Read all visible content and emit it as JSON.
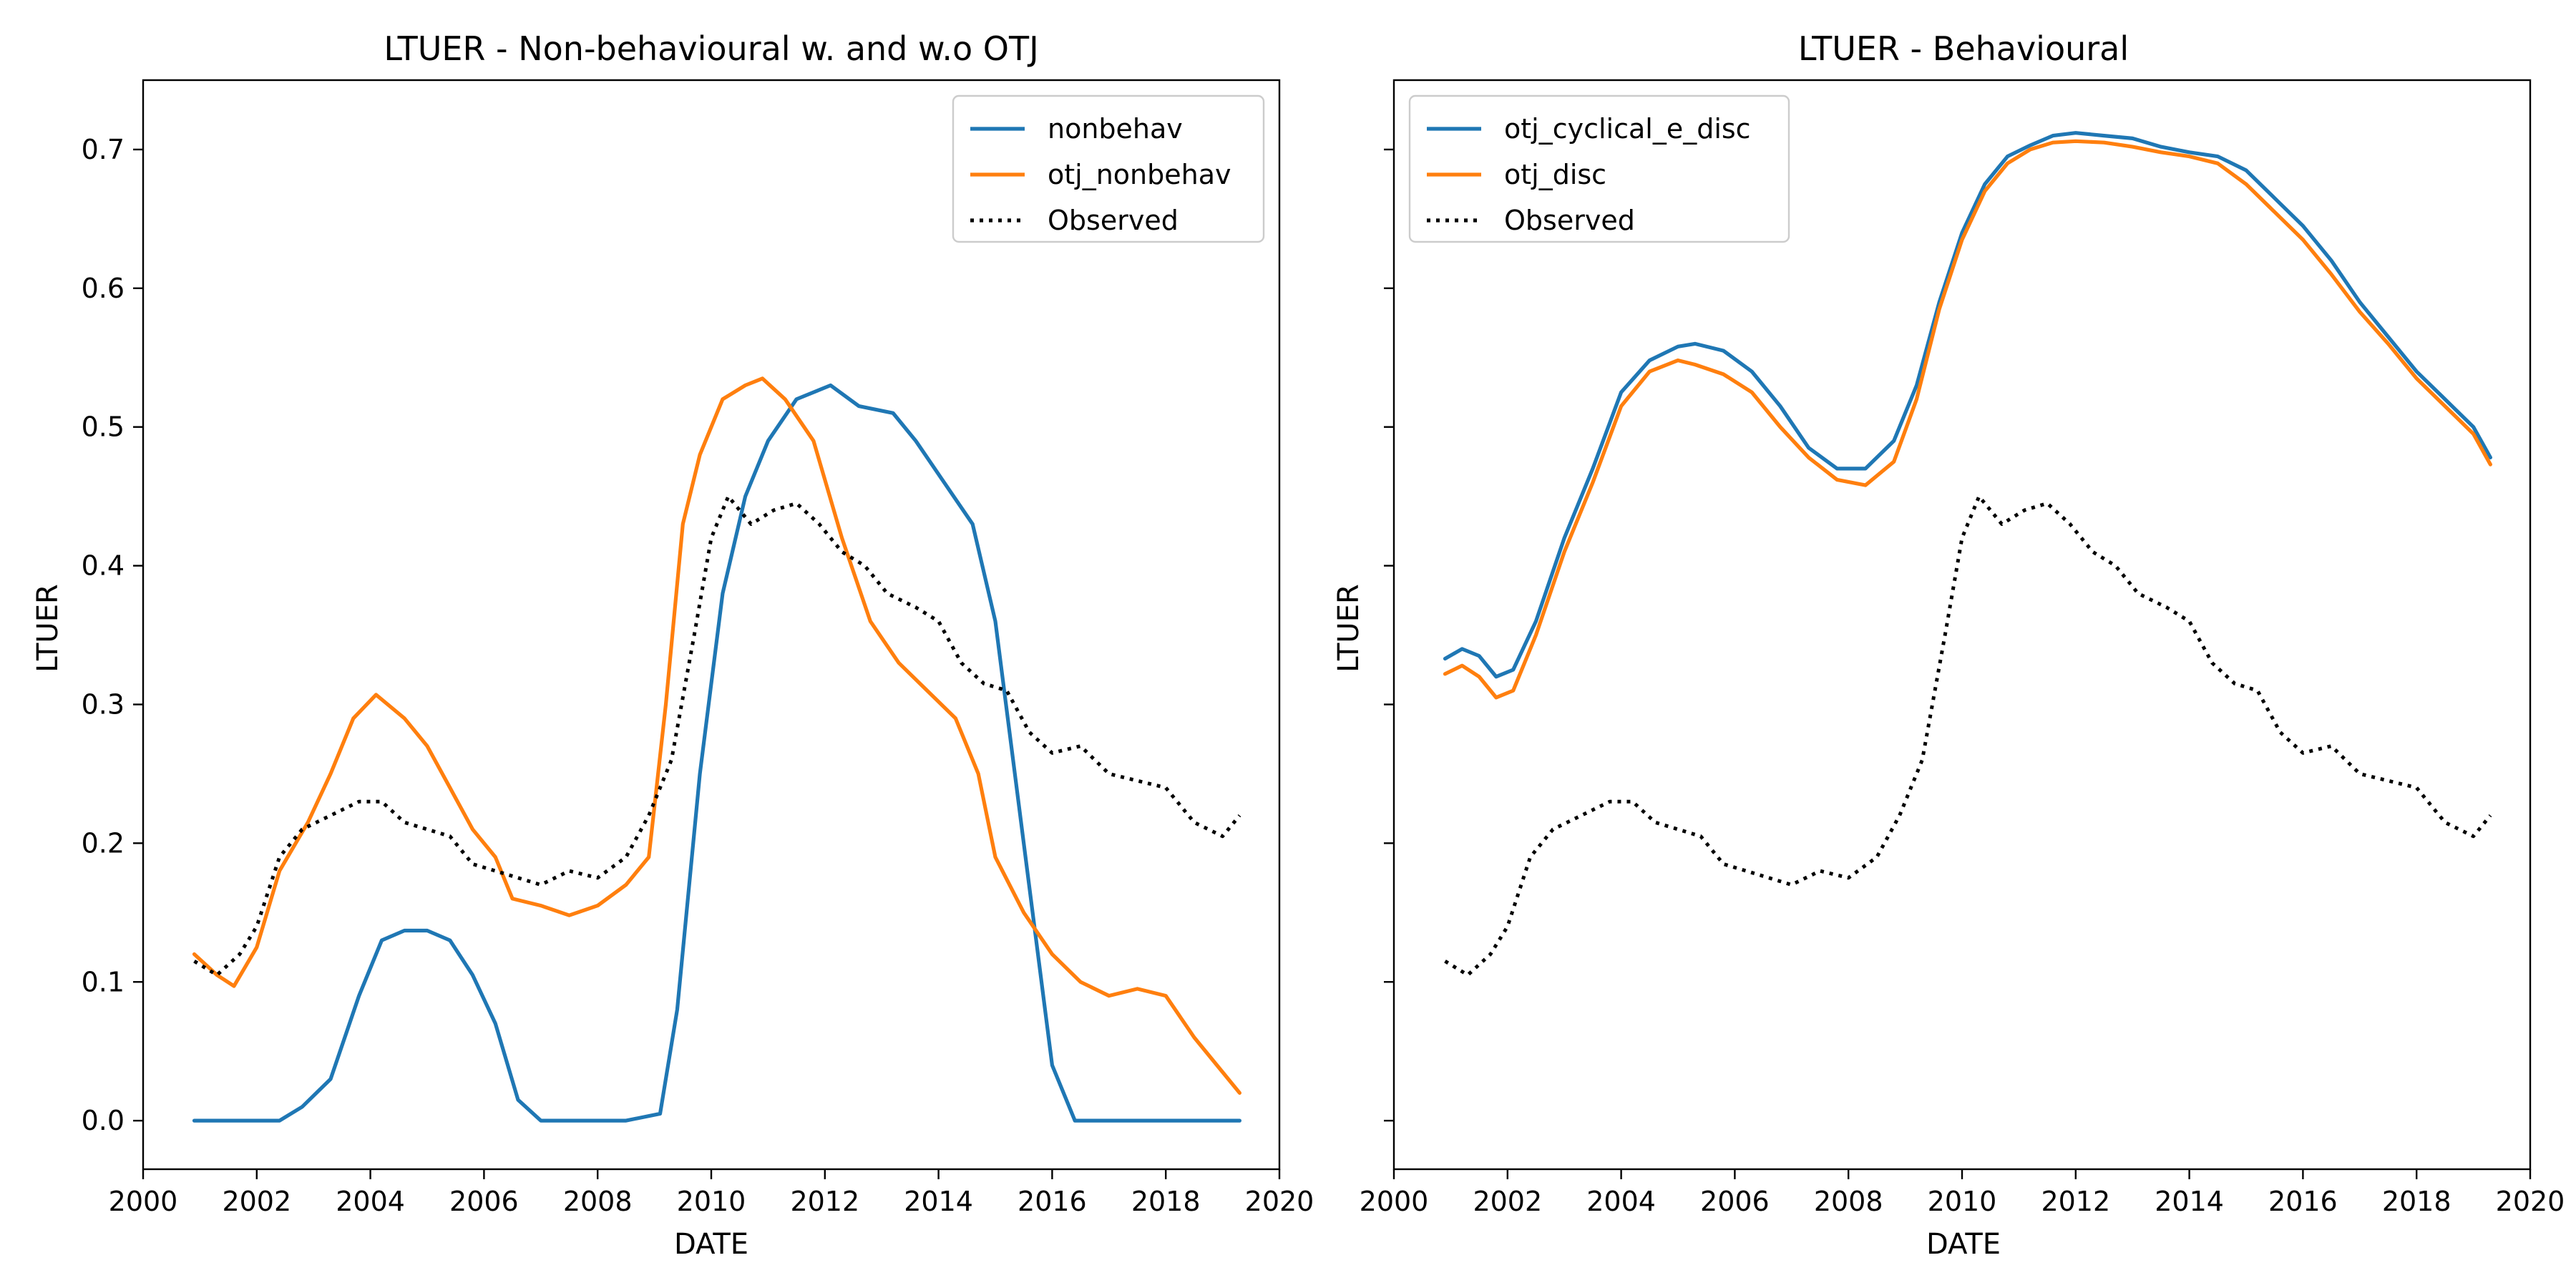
{
  "chart_data": [
    {
      "type": "line",
      "title": "LTUER - Non-behavioural w. and w.o OTJ",
      "xlabel": "DATE",
      "ylabel": "LTUER",
      "xlim": [
        2000,
        2020
      ],
      "ylim": [
        -0.035,
        0.75
      ],
      "xticks": [
        "2000",
        "2002",
        "2004",
        "2006",
        "2008",
        "2010",
        "2012",
        "2014",
        "2016",
        "2018",
        "2020"
      ],
      "yticks": [
        "0.0",
        "0.1",
        "0.2",
        "0.3",
        "0.4",
        "0.5",
        "0.6",
        "0.7"
      ],
      "legend": "top-right",
      "grid": false,
      "series": [
        {
          "name": "nonbehav",
          "color": "#1f77b4",
          "style": "solid",
          "x": [
            2000.9,
            2002.4,
            2002.8,
            2003.3,
            2003.8,
            2004.2,
            2004.6,
            2005.0,
            2005.4,
            2005.8,
            2006.2,
            2006.6,
            2007.0,
            2008.5,
            2009.1,
            2009.4,
            2009.8,
            2010.2,
            2010.6,
            2011.0,
            2011.5,
            2012.1,
            2012.6,
            2013.2,
            2013.6,
            2014.1,
            2014.6,
            2015.0,
            2015.5,
            2016.0,
            2016.4,
            2017.0,
            2019.3
          ],
          "y": [
            0.0,
            0.0,
            0.01,
            0.03,
            0.09,
            0.13,
            0.137,
            0.137,
            0.13,
            0.105,
            0.07,
            0.015,
            0.0,
            0.0,
            0.005,
            0.08,
            0.25,
            0.38,
            0.45,
            0.49,
            0.52,
            0.53,
            0.515,
            0.51,
            0.49,
            0.46,
            0.43,
            0.36,
            0.2,
            0.04,
            0.0,
            0.0,
            0.0
          ]
        },
        {
          "name": "otj_nonbehav",
          "color": "#ff7f0e",
          "style": "solid",
          "x": [
            2000.9,
            2001.3,
            2001.6,
            2002.0,
            2002.4,
            2002.9,
            2003.3,
            2003.7,
            2004.1,
            2004.6,
            2005.0,
            2005.4,
            2005.8,
            2006.2,
            2006.5,
            2007.0,
            2007.5,
            2008.0,
            2008.5,
            2008.9,
            2009.2,
            2009.5,
            2009.8,
            2010.2,
            2010.6,
            2010.9,
            2011.3,
            2011.8,
            2012.3,
            2012.8,
            2013.3,
            2013.8,
            2014.3,
            2014.7,
            2015.0,
            2015.5,
            2016.0,
            2016.5,
            2017.0,
            2017.5,
            2018.0,
            2018.5,
            2019.0,
            2019.3
          ],
          "y": [
            0.12,
            0.105,
            0.097,
            0.125,
            0.18,
            0.215,
            0.25,
            0.29,
            0.307,
            0.29,
            0.27,
            0.24,
            0.21,
            0.19,
            0.16,
            0.155,
            0.148,
            0.155,
            0.17,
            0.19,
            0.3,
            0.43,
            0.48,
            0.52,
            0.53,
            0.535,
            0.52,
            0.49,
            0.42,
            0.36,
            0.33,
            0.31,
            0.29,
            0.25,
            0.19,
            0.15,
            0.12,
            0.1,
            0.09,
            0.095,
            0.09,
            0.06,
            0.035,
            0.02
          ]
        },
        {
          "name": "Observed",
          "color": "#000000",
          "style": "dotted",
          "x": [
            2000.9,
            2001.3,
            2001.7,
            2002.0,
            2002.4,
            2002.8,
            2003.3,
            2003.8,
            2004.2,
            2004.6,
            2005.0,
            2005.4,
            2005.8,
            2006.2,
            2006.6,
            2007.0,
            2007.5,
            2008.0,
            2008.5,
            2008.9,
            2009.3,
            2009.7,
            2010.0,
            2010.3,
            2010.7,
            2011.1,
            2011.5,
            2011.9,
            2012.3,
            2012.7,
            2013.1,
            2013.6,
            2014.0,
            2014.4,
            2014.8,
            2015.2,
            2015.6,
            2016.0,
            2016.5,
            2017.0,
            2017.5,
            2018.0,
            2018.5,
            2019.0,
            2019.3
          ],
          "y": [
            0.115,
            0.105,
            0.12,
            0.14,
            0.19,
            0.21,
            0.22,
            0.23,
            0.23,
            0.215,
            0.21,
            0.205,
            0.185,
            0.18,
            0.175,
            0.17,
            0.18,
            0.175,
            0.19,
            0.22,
            0.26,
            0.35,
            0.42,
            0.45,
            0.43,
            0.44,
            0.445,
            0.43,
            0.41,
            0.4,
            0.38,
            0.37,
            0.36,
            0.33,
            0.315,
            0.31,
            0.28,
            0.265,
            0.27,
            0.25,
            0.245,
            0.24,
            0.215,
            0.205,
            0.22
          ]
        }
      ]
    },
    {
      "type": "line",
      "title": "LTUER - Behavioural",
      "xlabel": "DATE",
      "ylabel": "LTUER",
      "xlim": [
        2000,
        2020
      ],
      "ylim": [
        -0.035,
        0.75
      ],
      "xticks": [
        "2000",
        "2002",
        "2004",
        "2006",
        "2008",
        "2010",
        "2012",
        "2014",
        "2016",
        "2018",
        "2020"
      ],
      "yticks": [],
      "legend": "top-left",
      "grid": false,
      "series": [
        {
          "name": "otj_cyclical_e_disc",
          "color": "#1f77b4",
          "style": "solid",
          "x": [
            2000.9,
            2001.2,
            2001.5,
            2001.8,
            2002.1,
            2002.5,
            2003.0,
            2003.5,
            2004.0,
            2004.5,
            2005.0,
            2005.3,
            2005.8,
            2006.3,
            2006.8,
            2007.3,
            2007.8,
            2008.3,
            2008.8,
            2009.2,
            2009.6,
            2010.0,
            2010.4,
            2010.8,
            2011.2,
            2011.6,
            2012.0,
            2012.5,
            2013.0,
            2013.5,
            2014.0,
            2014.5,
            2015.0,
            2015.5,
            2016.0,
            2016.5,
            2017.0,
            2017.5,
            2018.0,
            2018.5,
            2019.0,
            2019.3
          ],
          "y": [
            0.333,
            0.34,
            0.335,
            0.32,
            0.325,
            0.36,
            0.42,
            0.47,
            0.525,
            0.548,
            0.558,
            0.56,
            0.555,
            0.54,
            0.515,
            0.485,
            0.47,
            0.47,
            0.49,
            0.53,
            0.59,
            0.64,
            0.675,
            0.695,
            0.703,
            0.71,
            0.712,
            0.71,
            0.708,
            0.702,
            0.698,
            0.695,
            0.685,
            0.665,
            0.645,
            0.62,
            0.59,
            0.565,
            0.54,
            0.52,
            0.5,
            0.478
          ]
        },
        {
          "name": "otj_disc",
          "color": "#ff7f0e",
          "style": "solid",
          "x": [
            2000.9,
            2001.2,
            2001.5,
            2001.8,
            2002.1,
            2002.5,
            2003.0,
            2003.5,
            2004.0,
            2004.5,
            2005.0,
            2005.3,
            2005.8,
            2006.3,
            2006.8,
            2007.3,
            2007.8,
            2008.3,
            2008.8,
            2009.2,
            2009.6,
            2010.0,
            2010.4,
            2010.8,
            2011.2,
            2011.6,
            2012.0,
            2012.5,
            2013.0,
            2013.5,
            2014.0,
            2014.5,
            2015.0,
            2015.5,
            2016.0,
            2016.5,
            2017.0,
            2017.5,
            2018.0,
            2018.5,
            2019.0,
            2019.3
          ],
          "y": [
            0.322,
            0.328,
            0.32,
            0.305,
            0.31,
            0.35,
            0.41,
            0.46,
            0.515,
            0.54,
            0.548,
            0.545,
            0.538,
            0.525,
            0.5,
            0.478,
            0.462,
            0.458,
            0.475,
            0.52,
            0.585,
            0.635,
            0.67,
            0.69,
            0.7,
            0.705,
            0.706,
            0.705,
            0.702,
            0.698,
            0.695,
            0.69,
            0.675,
            0.655,
            0.635,
            0.61,
            0.583,
            0.56,
            0.535,
            0.515,
            0.495,
            0.473
          ]
        },
        {
          "name": "Observed",
          "color": "#000000",
          "style": "dotted",
          "x": [
            2000.9,
            2001.3,
            2001.7,
            2002.0,
            2002.4,
            2002.8,
            2003.3,
            2003.8,
            2004.2,
            2004.6,
            2005.0,
            2005.4,
            2005.8,
            2006.2,
            2006.6,
            2007.0,
            2007.5,
            2008.0,
            2008.5,
            2008.9,
            2009.3,
            2009.7,
            2010.0,
            2010.3,
            2010.7,
            2011.1,
            2011.5,
            2011.9,
            2012.3,
            2012.7,
            2013.1,
            2013.6,
            2014.0,
            2014.4,
            2014.8,
            2015.2,
            2015.6,
            2016.0,
            2016.5,
            2017.0,
            2017.5,
            2018.0,
            2018.5,
            2019.0,
            2019.3
          ],
          "y": [
            0.115,
            0.105,
            0.12,
            0.14,
            0.19,
            0.21,
            0.22,
            0.23,
            0.23,
            0.215,
            0.21,
            0.205,
            0.185,
            0.18,
            0.175,
            0.17,
            0.18,
            0.175,
            0.19,
            0.22,
            0.26,
            0.35,
            0.42,
            0.45,
            0.43,
            0.44,
            0.445,
            0.43,
            0.41,
            0.4,
            0.38,
            0.37,
            0.36,
            0.33,
            0.315,
            0.31,
            0.28,
            0.265,
            0.27,
            0.25,
            0.245,
            0.24,
            0.215,
            0.205,
            0.22
          ]
        }
      ]
    }
  ]
}
